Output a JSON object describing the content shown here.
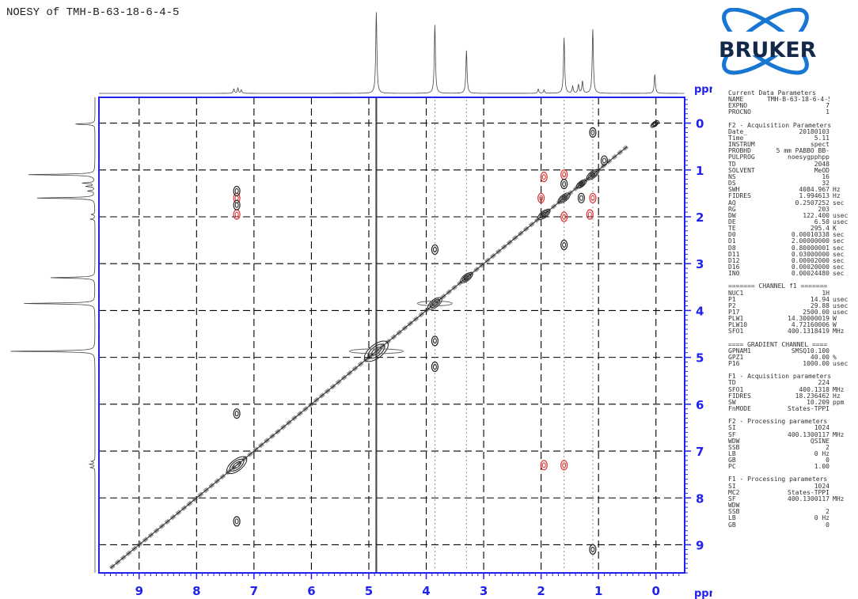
{
  "title": "NOESY of TMH-B-63-18-6-4-5",
  "logo": {
    "text": "BRUKER",
    "color": "#14294a"
  },
  "params": [
    {
      "h": "Current Data Parameters"
    },
    {
      "k": "NAME",
      "v": "TMH-B-63-18-6-4-5"
    },
    {
      "k": "EXPNO",
      "v": "7"
    },
    {
      "k": "PROCNO",
      "v": "1"
    },
    {
      "gap": true
    },
    {
      "h": "F2 - Acquisition Parameters"
    },
    {
      "k": "Date_",
      "v": "20180103"
    },
    {
      "k": "Time",
      "v": "5.11"
    },
    {
      "k": "INSTRUM",
      "v": "spect"
    },
    {
      "k": "PROBHD",
      "v": "5 mm PABBO BB-"
    },
    {
      "k": "PULPROG",
      "v": "noesygpphpp"
    },
    {
      "k": "TD",
      "v": "2048"
    },
    {
      "k": "SOLVENT",
      "v": "MeOD"
    },
    {
      "k": "NS",
      "v": "16"
    },
    {
      "k": "DS",
      "v": "32"
    },
    {
      "k": "SWH",
      "v": "4084.967",
      "u": "Hz"
    },
    {
      "k": "FIDRES",
      "v": "1.994613",
      "u": "Hz"
    },
    {
      "k": "AQ",
      "v": "0.2507252",
      "u": "sec"
    },
    {
      "k": "RG",
      "v": "203"
    },
    {
      "k": "DW",
      "v": "122.400",
      "u": "usec"
    },
    {
      "k": "DE",
      "v": "6.50",
      "u": "usec"
    },
    {
      "k": "TE",
      "v": "295.4",
      "u": "K"
    },
    {
      "k": "D0",
      "v": "0.00010338",
      "u": "sec"
    },
    {
      "k": "D1",
      "v": "2.00000000",
      "u": "sec"
    },
    {
      "k": "D8",
      "v": "0.80000001",
      "u": "sec"
    },
    {
      "k": "D11",
      "v": "0.03000000",
      "u": "sec"
    },
    {
      "k": "D12",
      "v": "0.00002000",
      "u": "sec"
    },
    {
      "k": "D16",
      "v": "0.00020000",
      "u": "sec"
    },
    {
      "k": "IN0",
      "v": "0.00024480",
      "u": "sec"
    },
    {
      "gap": true
    },
    {
      "h": "======= CHANNEL f1 ======="
    },
    {
      "k": "NUC1",
      "v": "1H"
    },
    {
      "k": "P1",
      "v": "14.94",
      "u": "usec"
    },
    {
      "k": "P2",
      "v": "29.88",
      "u": "usec"
    },
    {
      "k": "P17",
      "v": "2500.00",
      "u": "usec"
    },
    {
      "k": "PLW1",
      "v": "14.30000019",
      "u": "W"
    },
    {
      "k": "PLW10",
      "v": "4.72160006",
      "u": "W"
    },
    {
      "k": "SFO1",
      "v": "400.1318419",
      "u": "MHz"
    },
    {
      "gap": true
    },
    {
      "h": "==== GRADIENT CHANNEL ===="
    },
    {
      "k": "GPNAM1",
      "v": "SMSQ10.100"
    },
    {
      "k": "GPZ1",
      "v": "40.00",
      "u": "%"
    },
    {
      "k": "P16",
      "v": "1000.00",
      "u": "usec"
    },
    {
      "gap": true
    },
    {
      "h": "F1 - Acquisition parameters"
    },
    {
      "k": "TD",
      "v": "224"
    },
    {
      "k": "SFO1",
      "v": "400.1318",
      "u": "MHz"
    },
    {
      "k": "FIDRES",
      "v": "18.236462",
      "u": "Hz"
    },
    {
      "k": "SW",
      "v": "10.209",
      "u": "ppm"
    },
    {
      "k": "FnMODE",
      "v": "States-TPPI"
    },
    {
      "gap": true
    },
    {
      "h": "F2 - Processing parameters"
    },
    {
      "k": "SI",
      "v": "1024"
    },
    {
      "k": "SF",
      "v": "400.1300117",
      "u": "MHz"
    },
    {
      "k": "WDW",
      "v": "QSINE"
    },
    {
      "k": "SSB",
      "v": "2"
    },
    {
      "k": "LB",
      "v": "0 Hz"
    },
    {
      "k": "GB",
      "v": "0"
    },
    {
      "k": "PC",
      "v": "1.00"
    },
    {
      "gap": true
    },
    {
      "h": "F1 - Processing parameters"
    },
    {
      "k": "SI",
      "v": "1024"
    },
    {
      "k": "MC2",
      "v": "States-TPPI"
    },
    {
      "k": "SF",
      "v": "400.1300117",
      "u": "MHz"
    },
    {
      "k": "WDW",
      "v": ""
    },
    {
      "k": "SSB",
      "v": "2"
    },
    {
      "k": "LB",
      "v": "0 Hz"
    },
    {
      "k": "GB",
      "v": "0"
    }
  ],
  "chart_data": {
    "type": "2d-nmr-contour",
    "title": "NOESY of TMH-B-63-18-6-4-5",
    "x_unit": "ppm",
    "y_unit": "ppm",
    "x_range": [
      9.7,
      -0.5
    ],
    "y_range": [
      -0.55,
      9.6
    ],
    "x_ticks": [
      9,
      8,
      7,
      6,
      5,
      4,
      3,
      2,
      1,
      0
    ],
    "y_ticks": [
      0,
      1,
      2,
      3,
      4,
      5,
      6,
      7,
      8,
      9
    ],
    "x_tick_labels": [
      "9",
      "8",
      "7",
      "6",
      "5",
      "4",
      "3",
      "2",
      "1",
      "0"
    ],
    "y_tick_labels": [
      "0",
      "1",
      "2",
      "3",
      "4",
      "5",
      "6",
      "7",
      "8",
      "9"
    ],
    "grid": "dashed",
    "colors": {
      "axis": "#2222ee",
      "grid": "#000000",
      "positive": "#222222",
      "negative": "#dd3333"
    },
    "projection_peaks": [
      {
        "ppm": 7.35,
        "h": 0.05
      },
      {
        "ppm": 7.28,
        "h": 0.06
      },
      {
        "ppm": 7.22,
        "h": 0.04
      },
      {
        "ppm": 4.87,
        "h": 0.95
      },
      {
        "ppm": 3.85,
        "h": 0.8
      },
      {
        "ppm": 3.3,
        "h": 0.5
      },
      {
        "ppm": 2.05,
        "h": 0.05
      },
      {
        "ppm": 1.95,
        "h": 0.04
      },
      {
        "ppm": 1.6,
        "h": 0.65
      },
      {
        "ppm": 1.45,
        "h": 0.08
      },
      {
        "ppm": 1.35,
        "h": 0.1
      },
      {
        "ppm": 1.28,
        "h": 0.14
      },
      {
        "ppm": 1.1,
        "h": 0.75
      },
      {
        "ppm": 0.02,
        "h": 0.22
      }
    ],
    "diagonal": {
      "from": 9.5,
      "to": 0.5
    },
    "diagonal_peaks": [
      {
        "ppm": 7.3,
        "r": 10
      },
      {
        "ppm": 4.87,
        "r": 12
      },
      {
        "ppm": 3.85,
        "r": 7
      },
      {
        "ppm": 3.3,
        "r": 6
      },
      {
        "ppm": 1.95,
        "r": 6
      },
      {
        "ppm": 1.6,
        "r": 6
      },
      {
        "ppm": 1.3,
        "r": 5
      },
      {
        "ppm": 1.1,
        "r": 6
      },
      {
        "ppm": 0.02,
        "r": 4
      }
    ],
    "cross_peaks": [
      {
        "x": 7.3,
        "y": 1.6,
        "sign": "neg"
      },
      {
        "x": 7.3,
        "y": 1.95,
        "sign": "neg"
      },
      {
        "x": 1.6,
        "y": 7.3,
        "sign": "neg"
      },
      {
        "x": 1.95,
        "y": 7.3,
        "sign": "neg"
      },
      {
        "x": 7.3,
        "y": 1.45,
        "sign": "pos"
      },
      {
        "x": 7.3,
        "y": 1.75,
        "sign": "pos"
      },
      {
        "x": 1.95,
        "y": 1.15,
        "sign": "neg"
      },
      {
        "x": 1.15,
        "y": 1.95,
        "sign": "neg"
      },
      {
        "x": 1.6,
        "y": 1.1,
        "sign": "neg"
      },
      {
        "x": 1.1,
        "y": 1.6,
        "sign": "neg"
      },
      {
        "x": 1.6,
        "y": 2.0,
        "sign": "neg"
      },
      {
        "x": 2.0,
        "y": 1.6,
        "sign": "neg"
      },
      {
        "x": 1.3,
        "y": 1.6,
        "sign": "pos"
      },
      {
        "x": 1.6,
        "y": 1.3,
        "sign": "pos"
      },
      {
        "x": 3.85,
        "y": 2.7,
        "sign": "pos"
      },
      {
        "x": 3.85,
        "y": 4.65,
        "sign": "pos"
      },
      {
        "x": 3.85,
        "y": 5.2,
        "sign": "pos"
      },
      {
        "x": 7.3,
        "y": 6.2,
        "sign": "pos"
      },
      {
        "x": 7.3,
        "y": 8.5,
        "sign": "pos"
      },
      {
        "x": 1.1,
        "y": 9.1,
        "sign": "pos"
      },
      {
        "x": 1.1,
        "y": 0.2,
        "sign": "pos"
      },
      {
        "x": 0.9,
        "y": 0.8,
        "sign": "pos"
      },
      {
        "x": 1.6,
        "y": 2.6,
        "sign": "pos"
      }
    ],
    "t1_noise_columns": [
      4.87,
      3.85,
      3.3,
      1.6,
      1.1
    ]
  }
}
